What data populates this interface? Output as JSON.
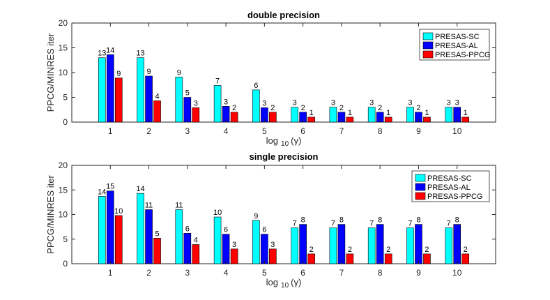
{
  "chart_data": [
    {
      "type": "bar",
      "title": "double precision",
      "xlabel_main": "log",
      "xlabel_sub": "10",
      "xlabel_tail": "(γ)",
      "ylabel": "PPCG/MINRES iter",
      "ylim": [
        0,
        20
      ],
      "yticks": [
        0,
        5,
        10,
        15,
        20
      ],
      "categories": [
        "1",
        "2",
        "3",
        "4",
        "5",
        "6",
        "7",
        "8",
        "9",
        "10"
      ],
      "legend_position": "top-right",
      "series": [
        {
          "name": "PRESAS-SC",
          "color": "#00FFFF",
          "values": [
            13,
            13,
            9.1,
            7.4,
            6.5,
            3,
            3,
            3,
            3,
            3
          ],
          "labels": [
            "13",
            "13",
            "9",
            "7",
            "6",
            "3",
            "3",
            "3",
            "3",
            "3"
          ]
        },
        {
          "name": "PRESAS-AL",
          "color": "#0000FF",
          "values": [
            13.6,
            9.3,
            5,
            3.2,
            2.9,
            2,
            2,
            2,
            2,
            3
          ],
          "labels": [
            "14",
            "9",
            "5",
            "3",
            "3",
            "2",
            "2",
            "2",
            "2",
            "3"
          ]
        },
        {
          "name": "PRESAS-PPCG",
          "color": "#FF0000",
          "values": [
            8.9,
            4.3,
            2.9,
            2,
            2,
            1,
            1,
            1,
            1,
            1
          ],
          "labels": [
            "9",
            "4",
            "3",
            "2",
            "2",
            "1",
            "1",
            "1",
            "1",
            "1"
          ]
        }
      ]
    },
    {
      "type": "bar",
      "title": "single precision",
      "xlabel_main": "log",
      "xlabel_sub": "10",
      "xlabel_tail": "(γ)",
      "ylabel": "PPCG/MINRES iter",
      "ylim": [
        0,
        20
      ],
      "yticks": [
        0,
        5,
        10,
        15,
        20
      ],
      "categories": [
        "1",
        "2",
        "3",
        "4",
        "5",
        "6",
        "7",
        "8",
        "9",
        "10"
      ],
      "legend_position": "top-right",
      "series": [
        {
          "name": "PRESAS-SC",
          "color": "#00FFFF",
          "values": [
            13.7,
            14.3,
            11,
            9.5,
            8.8,
            7.3,
            7.3,
            7.3,
            7.3,
            7.3
          ],
          "labels": [
            "14",
            "14",
            "11",
            "10",
            "9",
            "7",
            "7",
            "7",
            "7",
            "7"
          ]
        },
        {
          "name": "PRESAS-AL",
          "color": "#0000FF",
          "values": [
            14.8,
            11,
            6.2,
            6,
            6,
            8,
            8,
            8,
            8,
            8
          ],
          "labels": [
            "15",
            "11",
            "6",
            "6",
            "6",
            "8",
            "8",
            "8",
            "8",
            "8"
          ]
        },
        {
          "name": "PRESAS-PPCG",
          "color": "#FF0000",
          "values": [
            9.8,
            5.2,
            3.9,
            3,
            3,
            2,
            2,
            2,
            2,
            2
          ],
          "labels": [
            "10",
            "5",
            "4",
            "3",
            "3",
            "2",
            "2",
            "2",
            "2",
            "2"
          ]
        }
      ]
    }
  ]
}
